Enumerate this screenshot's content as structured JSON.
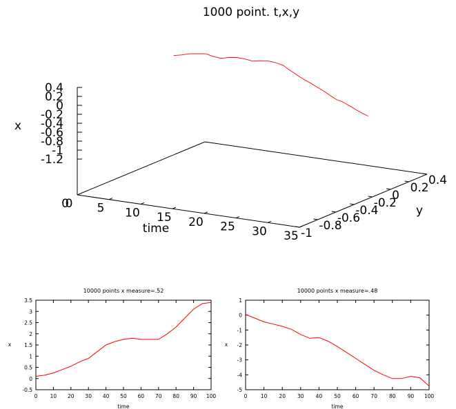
{
  "chart_data": [
    {
      "type": "line",
      "title": "1000 point. t,x,y",
      "xlabel": "time",
      "ylabel": "y",
      "zlabel": "x",
      "time_ticks": [
        "0",
        "5",
        "10",
        "15",
        "20",
        "25",
        "30",
        "35"
      ],
      "y_ticks": [
        "-1",
        "-0.8",
        "-0.6",
        "-0.4",
        "-0.2",
        "0",
        "0.2",
        "0.4"
      ],
      "x_ticks": [
        "0.4",
        "0.2",
        "0",
        "-0.2",
        "-0.4",
        "-0.6",
        "-0.8",
        "-1",
        "-1.2"
      ],
      "time_range": [
        0,
        35
      ],
      "series_color": "#ff0000",
      "points": [
        [
          22.0,
          -0.52,
          0.1
        ],
        [
          22.6,
          -0.46,
          0.18
        ],
        [
          23.2,
          -0.38,
          0.28
        ],
        [
          23.8,
          -0.3,
          0.32
        ],
        [
          24.4,
          -0.24,
          0.36
        ],
        [
          25.0,
          -0.2,
          0.26
        ],
        [
          25.6,
          -0.14,
          0.2
        ],
        [
          26.2,
          -0.08,
          0.3
        ],
        [
          26.8,
          -0.02,
          0.34
        ],
        [
          27.4,
          0.04,
          0.3
        ],
        [
          28.0,
          0.1,
          0.22
        ],
        [
          28.6,
          0.14,
          0.3
        ],
        [
          29.2,
          0.2,
          0.34
        ],
        [
          29.8,
          0.26,
          0.28
        ],
        [
          30.4,
          0.3,
          0.18
        ],
        [
          31.0,
          0.24,
          0.06
        ],
        [
          31.6,
          0.18,
          -0.04
        ],
        [
          32.2,
          0.12,
          -0.14
        ],
        [
          32.8,
          0.06,
          -0.22
        ],
        [
          33.4,
          0.0,
          -0.28
        ],
        [
          34.0,
          -0.06,
          -0.36
        ],
        [
          34.6,
          -0.12,
          -0.44
        ],
        [
          35.2,
          -0.2,
          -0.5
        ],
        [
          35.8,
          -0.28,
          -0.58
        ],
        [
          36.4,
          -0.36,
          -0.64
        ],
        [
          37.0,
          -0.44,
          -0.62
        ],
        [
          37.6,
          -0.52,
          -0.66
        ],
        [
          38.2,
          -0.6,
          -0.7
        ],
        [
          38.8,
          -0.68,
          -0.76
        ],
        [
          39.4,
          -0.74,
          -0.82
        ],
        [
          40.0,
          -0.8,
          -0.86
        ]
      ]
    },
    {
      "type": "line",
      "title": "10000 points x measure=.52",
      "xlabel": "time",
      "ylabel": "x",
      "xlim": [
        0,
        100
      ],
      "ylim": [
        -0.5,
        3.5
      ],
      "xticks": [
        0,
        10,
        20,
        30,
        40,
        50,
        60,
        70,
        80,
        90,
        100
      ],
      "yticks": [
        -0.5,
        0,
        0.5,
        1,
        1.5,
        2,
        2.5,
        3,
        3.5
      ],
      "series_color": "#ff0000",
      "x": [
        0,
        5,
        10,
        15,
        20,
        25,
        30,
        35,
        40,
        45,
        50,
        55,
        60,
        65,
        70,
        75,
        80,
        85,
        90,
        95,
        100
      ],
      "y": [
        0.1,
        0.15,
        0.25,
        0.4,
        0.55,
        0.75,
        0.9,
        1.2,
        1.5,
        1.65,
        1.75,
        1.8,
        1.75,
        1.75,
        1.75,
        2.0,
        2.3,
        2.7,
        3.1,
        3.35,
        3.4
      ]
    },
    {
      "type": "line",
      "title": "10000 points  x measure=.48",
      "xlabel": "time",
      "ylabel": "x",
      "xlim": [
        0,
        100
      ],
      "ylim": [
        -5,
        1
      ],
      "xticks": [
        0,
        10,
        20,
        30,
        40,
        50,
        60,
        70,
        80,
        90,
        100
      ],
      "yticks": [
        -5,
        -4,
        -3,
        -2,
        -1,
        0,
        1
      ],
      "series_color": "#ff0000",
      "x": [
        0,
        5,
        10,
        15,
        20,
        25,
        30,
        35,
        40,
        45,
        50,
        55,
        60,
        65,
        70,
        75,
        80,
        85,
        90,
        95,
        100
      ],
      "y": [
        0.05,
        -0.2,
        -0.45,
        -0.6,
        -0.75,
        -0.95,
        -1.3,
        -1.55,
        -1.5,
        -1.75,
        -2.1,
        -2.5,
        -2.9,
        -3.3,
        -3.7,
        -4.0,
        -4.25,
        -4.25,
        -4.1,
        -4.2,
        -4.75
      ]
    }
  ]
}
